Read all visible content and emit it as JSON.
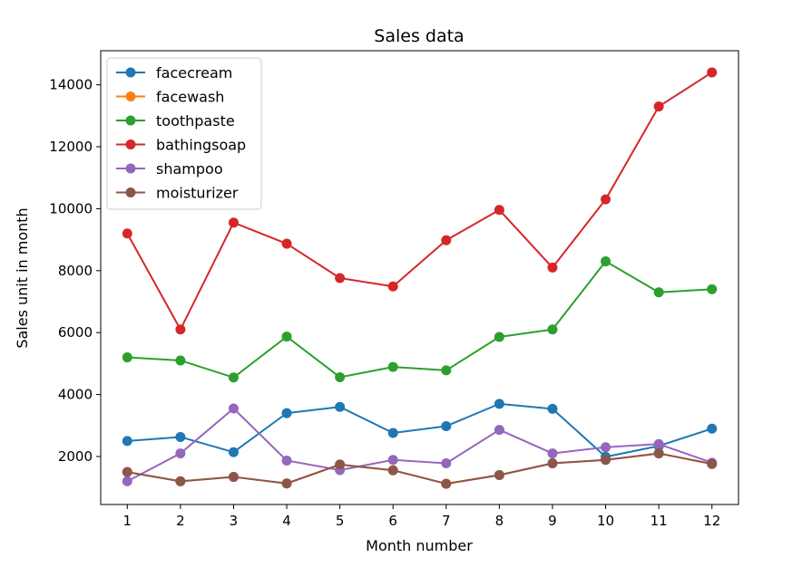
{
  "chart_data": {
    "type": "line",
    "title": "Sales data",
    "xlabel": "Month number",
    "ylabel": "Sales unit in month",
    "xlim": [
      0.5,
      12.5
    ],
    "ylim": [
      450,
      15100
    ],
    "x_ticks": [
      1,
      2,
      3,
      4,
      5,
      6,
      7,
      8,
      9,
      10,
      11,
      12
    ],
    "y_ticks": [
      2000,
      4000,
      6000,
      8000,
      10000,
      12000,
      14000
    ],
    "legend_position": "top-left",
    "grid": false,
    "x": [
      1,
      2,
      3,
      4,
      5,
      6,
      7,
      8,
      9,
      10,
      11,
      12
    ],
    "series": [
      {
        "name": "facecream",
        "color": "#1f77b4",
        "values": [
          2500,
          2630,
          2140,
          3400,
          3600,
          2760,
          2980,
          3700,
          3540,
          1990,
          2340,
          2900
        ]
      },
      {
        "name": "facewash",
        "color": "#ff7f0e",
        "values": [
          1500,
          1200,
          1340,
          1130,
          1740,
          1555,
          1120,
          1400,
          1780,
          1890,
          2100,
          1760
        ]
      },
      {
        "name": "toothpaste",
        "color": "#2ca02c",
        "values": [
          5200,
          5100,
          4550,
          5870,
          4560,
          4890,
          4780,
          5860,
          6100,
          8300,
          7300,
          7400
        ]
      },
      {
        "name": "bathingsoap",
        "color": "#d62728",
        "values": [
          9200,
          6100,
          9550,
          8870,
          7760,
          7490,
          8980,
          9960,
          8100,
          10300,
          13300,
          14400
        ]
      },
      {
        "name": "shampoo",
        "color": "#9467bd",
        "values": [
          1200,
          2100,
          3550,
          1870,
          1560,
          1890,
          1780,
          2860,
          2100,
          2300,
          2400,
          1800
        ]
      },
      {
        "name": "moisturizer",
        "color": "#8c564b",
        "values": [
          1500,
          1200,
          1340,
          1130,
          1740,
          1555,
          1120,
          1400,
          1780,
          1890,
          2100,
          1760
        ]
      }
    ]
  }
}
